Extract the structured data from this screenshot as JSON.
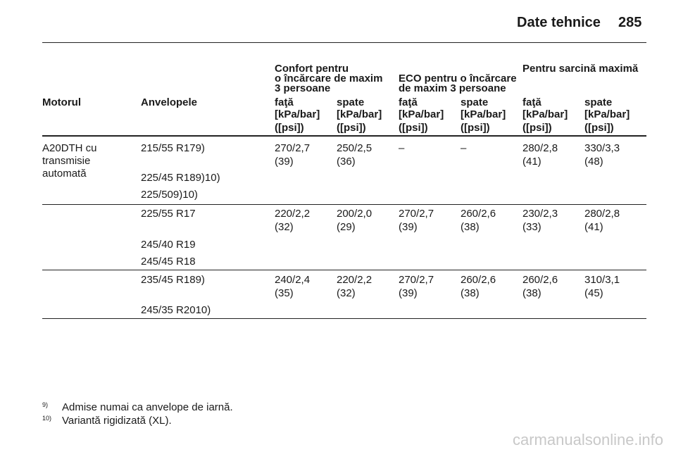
{
  "header": {
    "title": "Date tehnice",
    "page": "285"
  },
  "table": {
    "group_headers": [
      [
        "Confort pentru",
        "o încărcare de maxim",
        "3 persoane"
      ],
      [
        "ECO pentru o încărcare",
        "de maxim 3 persoane"
      ],
      [
        "Pentru sarcină maximă"
      ]
    ],
    "columns": [
      "Motorul",
      "Anvelopele",
      "faţă",
      "spate",
      "faţă",
      "spate",
      "faţă",
      "spate"
    ],
    "units": [
      [
        "[kPa/bar]",
        "([psi])"
      ],
      [
        "[kPa/bar]",
        "([psi])"
      ],
      [
        "[kPa/bar]",
        "([psi])"
      ],
      [
        "[kPa/bar]",
        "([psi])"
      ],
      [
        "[kPa/bar]",
        "([psi])"
      ],
      [
        "[kPa/bar]",
        "([psi])"
      ]
    ],
    "rows": [
      {
        "engine": [
          "A20DTH cu",
          "transmisie",
          "automată"
        ],
        "tyres": [
          {
            "size": "215/55 R17",
            "note": "9)"
          },
          {
            "size": "225/45 R18",
            "note": "9)10)"
          },
          {
            "size": "225/50",
            "note": "9)10)"
          }
        ],
        "values": [
          [
            "270/2,7",
            "(39)"
          ],
          [
            "250/2,5",
            "(36)"
          ],
          [
            "–"
          ],
          [
            "–"
          ],
          [
            "280/2,8",
            "(41)"
          ],
          [
            "330/3,3",
            "(48)"
          ]
        ]
      },
      {
        "engine": [],
        "tyres": [
          {
            "size": "225/55 R17"
          },
          {
            "size": "245/40 R19"
          },
          {
            "size": "245/45 R18"
          }
        ],
        "values": [
          [
            "220/2,2",
            "(32)"
          ],
          [
            "200/2,0",
            "(29)"
          ],
          [
            "270/2,7",
            "(39)"
          ],
          [
            "260/2,6",
            "(38)"
          ],
          [
            "230/2,3",
            "(33)"
          ],
          [
            "280/2,8",
            "(41)"
          ]
        ]
      },
      {
        "engine": [],
        "tyres": [
          {
            "size": "235/45 R18",
            "note": "9)"
          },
          {
            "size": "245/35 R20",
            "note": "10)"
          }
        ],
        "values": [
          [
            "240/2,4",
            "(35)"
          ],
          [
            "220/2,2",
            "(32)"
          ],
          [
            "270/2,7",
            "(39)"
          ],
          [
            "260/2,6",
            "(38)"
          ],
          [
            "260/2,6",
            "(38)"
          ],
          [
            "310/3,1",
            "(45)"
          ]
        ]
      }
    ]
  },
  "footnotes": [
    {
      "mark": "9)",
      "text": "Admise numai ca anvelope de iarnă."
    },
    {
      "mark": "10)",
      "text": "Variantă rigidizată (XL)."
    }
  ],
  "watermark": "carmanualsonline.info"
}
